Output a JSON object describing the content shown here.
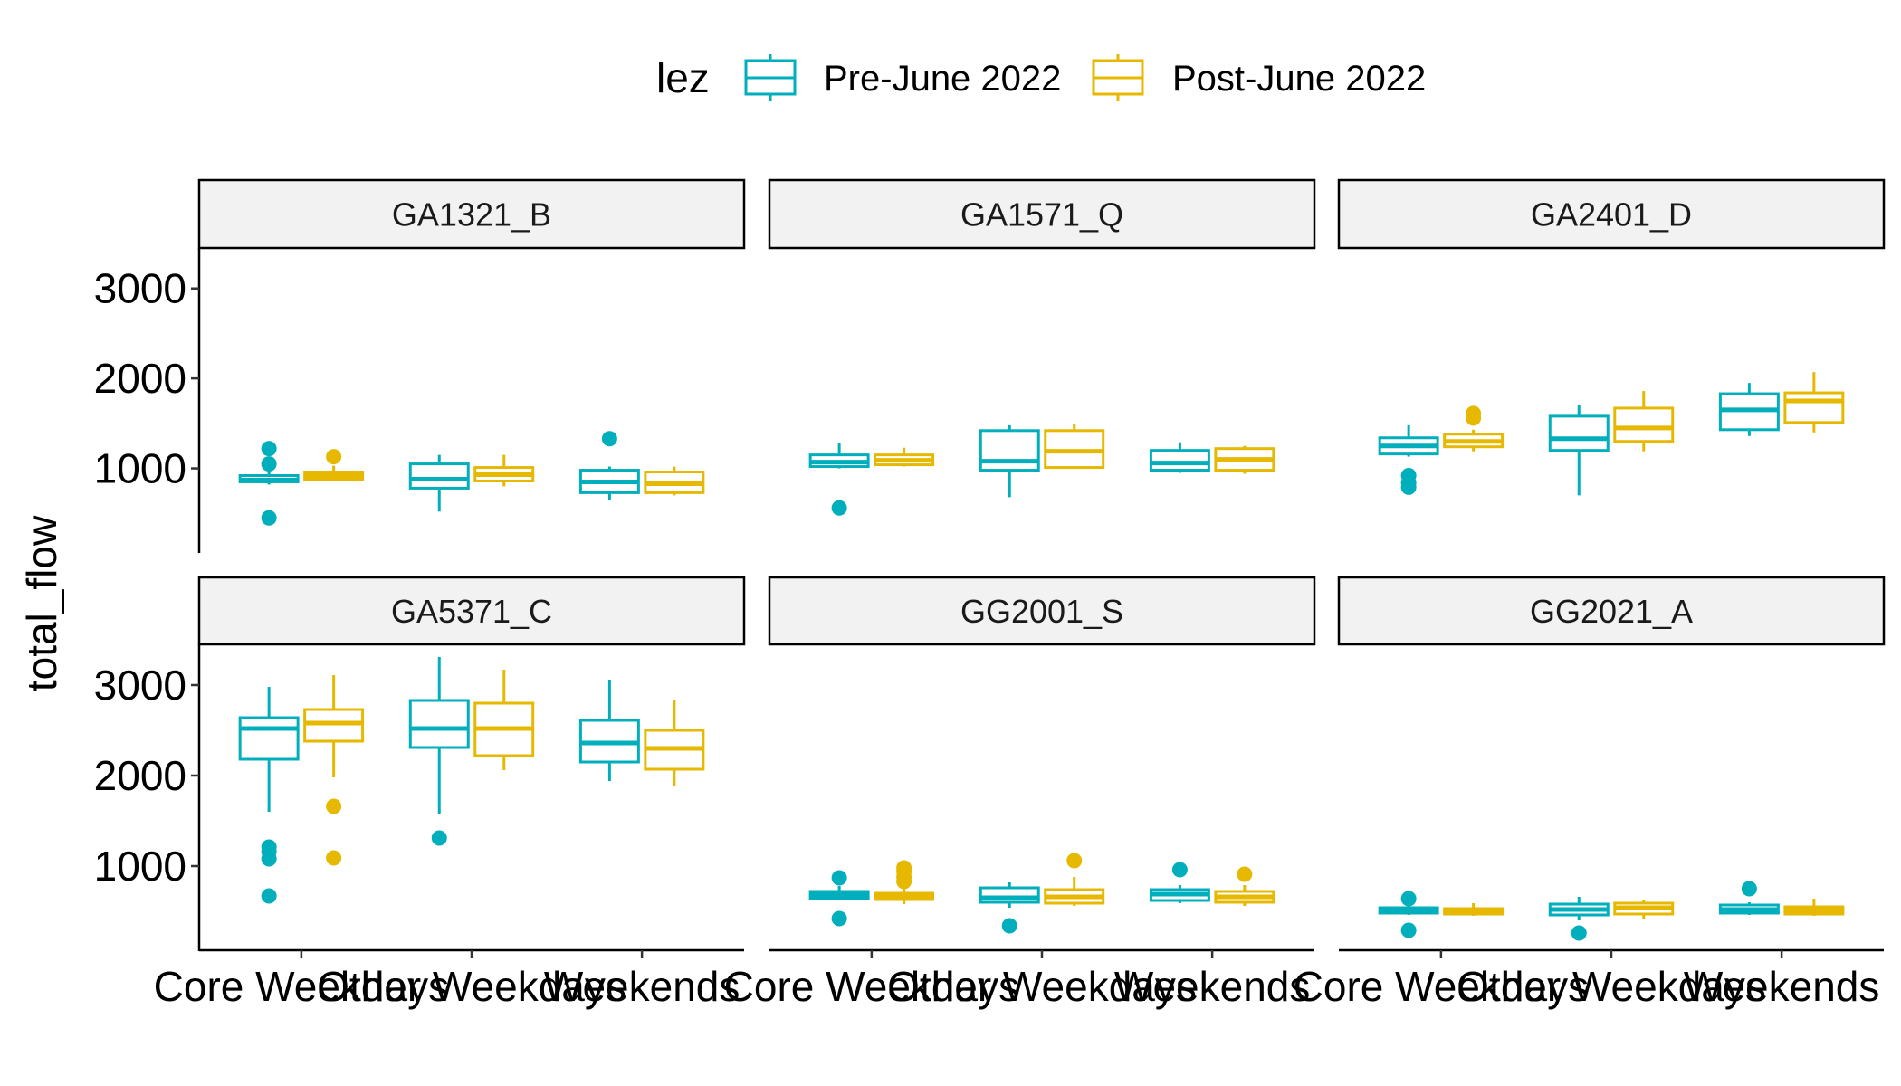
{
  "legend": {
    "title": "lez",
    "entries": [
      {
        "label": "Pre-June 2022",
        "color": "#00AFBB"
      },
      {
        "label": "Post-June 2022",
        "color": "#E7B800"
      }
    ]
  },
  "chart_data": {
    "type": "boxplot",
    "ylabel": "total_flow",
    "xlabel": "",
    "yticks": [
      1000,
      2000,
      3000
    ],
    "ylim": [
      70,
      3450
    ],
    "grid": false,
    "legend_position": "top",
    "categories": [
      "Core Weekdays",
      "Other Weekdays",
      "Weekends"
    ],
    "series": [
      "Pre-June 2022",
      "Post-June 2022"
    ],
    "panels": [
      {
        "name": "GA1321_B",
        "groups": [
          {
            "category": "Core Weekdays",
            "series": "Pre-June 2022",
            "min": 820,
            "q1": 850,
            "median": 870,
            "q3": 920,
            "max": 1000,
            "outliers": [
              1220,
              1050,
              450
            ]
          },
          {
            "category": "Core Weekdays",
            "series": "Post-June 2022",
            "min": 860,
            "q1": 880,
            "median": 920,
            "q3": 960,
            "max": 1030,
            "outliers": [
              1130
            ]
          },
          {
            "category": "Other Weekdays",
            "series": "Pre-June 2022",
            "min": 520,
            "q1": 780,
            "median": 880,
            "q3": 1050,
            "max": 1150,
            "outliers": []
          },
          {
            "category": "Other Weekdays",
            "series": "Post-June 2022",
            "min": 800,
            "q1": 860,
            "median": 930,
            "q3": 1010,
            "max": 1150,
            "outliers": []
          },
          {
            "category": "Weekends",
            "series": "Pre-June 2022",
            "min": 650,
            "q1": 730,
            "median": 850,
            "q3": 980,
            "max": 1020,
            "outliers": [
              1330
            ]
          },
          {
            "category": "Weekends",
            "series": "Post-June 2022",
            "min": 700,
            "q1": 730,
            "median": 830,
            "q3": 960,
            "max": 1020,
            "outliers": []
          }
        ]
      },
      {
        "name": "GA1571_Q",
        "groups": [
          {
            "category": "Core Weekdays",
            "series": "Pre-June 2022",
            "min": 1000,
            "q1": 1020,
            "median": 1070,
            "q3": 1150,
            "max": 1280,
            "outliers": [
              560
            ]
          },
          {
            "category": "Core Weekdays",
            "series": "Post-June 2022",
            "min": 1020,
            "q1": 1040,
            "median": 1090,
            "q3": 1150,
            "max": 1230,
            "outliers": []
          },
          {
            "category": "Other Weekdays",
            "series": "Pre-June 2022",
            "min": 680,
            "q1": 980,
            "median": 1080,
            "q3": 1420,
            "max": 1480,
            "outliers": []
          },
          {
            "category": "Other Weekdays",
            "series": "Post-June 2022",
            "min": 1000,
            "q1": 1010,
            "median": 1190,
            "q3": 1420,
            "max": 1490,
            "outliers": []
          },
          {
            "category": "Weekends",
            "series": "Pre-June 2022",
            "min": 950,
            "q1": 980,
            "median": 1060,
            "q3": 1200,
            "max": 1290,
            "outliers": []
          },
          {
            "category": "Weekends",
            "series": "Post-June 2022",
            "min": 940,
            "q1": 980,
            "median": 1100,
            "q3": 1220,
            "max": 1250,
            "outliers": []
          }
        ]
      },
      {
        "name": "GA2401_D",
        "groups": [
          {
            "category": "Core Weekdays",
            "series": "Pre-June 2022",
            "min": 1130,
            "q1": 1160,
            "median": 1250,
            "q3": 1340,
            "max": 1480,
            "outliers": [
              920,
              840,
              790
            ]
          },
          {
            "category": "Core Weekdays",
            "series": "Post-June 2022",
            "min": 1190,
            "q1": 1240,
            "median": 1300,
            "q3": 1380,
            "max": 1430,
            "outliers": [
              1610,
              1560
            ]
          },
          {
            "category": "Other Weekdays",
            "series": "Pre-June 2022",
            "min": 700,
            "q1": 1200,
            "median": 1330,
            "q3": 1580,
            "max": 1700,
            "outliers": []
          },
          {
            "category": "Other Weekdays",
            "series": "Post-June 2022",
            "min": 1190,
            "q1": 1300,
            "median": 1450,
            "q3": 1670,
            "max": 1860,
            "outliers": []
          },
          {
            "category": "Weekends",
            "series": "Pre-June 2022",
            "min": 1360,
            "q1": 1430,
            "median": 1650,
            "q3": 1830,
            "max": 1950,
            "outliers": []
          },
          {
            "category": "Weekends",
            "series": "Post-June 2022",
            "min": 1400,
            "q1": 1510,
            "median": 1750,
            "q3": 1840,
            "max": 2070,
            "outliers": []
          }
        ]
      },
      {
        "name": "GA5371_C",
        "groups": [
          {
            "category": "Core Weekdays",
            "series": "Pre-June 2022",
            "min": 1600,
            "q1": 2180,
            "median": 2520,
            "q3": 2640,
            "max": 2980,
            "outliers": [
              1210,
              1160,
              1080,
              670
            ]
          },
          {
            "category": "Core Weekdays",
            "series": "Post-June 2022",
            "min": 1980,
            "q1": 2380,
            "median": 2580,
            "q3": 2730,
            "max": 3110,
            "outliers": [
              1660,
              1090
            ]
          },
          {
            "category": "Other Weekdays",
            "series": "Pre-June 2022",
            "min": 1570,
            "q1": 2310,
            "median": 2520,
            "q3": 2830,
            "max": 3310,
            "outliers": [
              1310
            ]
          },
          {
            "category": "Other Weekdays",
            "series": "Post-June 2022",
            "min": 2060,
            "q1": 2220,
            "median": 2520,
            "q3": 2800,
            "max": 3170,
            "outliers": []
          },
          {
            "category": "Weekends",
            "series": "Pre-June 2022",
            "min": 1940,
            "q1": 2150,
            "median": 2360,
            "q3": 2610,
            "max": 3060,
            "outliers": []
          },
          {
            "category": "Weekends",
            "series": "Post-June 2022",
            "min": 1880,
            "q1": 2070,
            "median": 2300,
            "q3": 2500,
            "max": 2840,
            "outliers": []
          }
        ]
      },
      {
        "name": "GG2001_S",
        "groups": [
          {
            "category": "Core Weekdays",
            "series": "Pre-June 2022",
            "min": 630,
            "q1": 640,
            "median": 680,
            "q3": 720,
            "max": 780,
            "outliers": [
              870,
              420
            ]
          },
          {
            "category": "Core Weekdays",
            "series": "Post-June 2022",
            "min": 580,
            "q1": 630,
            "median": 660,
            "q3": 700,
            "max": 760,
            "outliers": [
              980,
              940,
              880,
              830
            ]
          },
          {
            "category": "Other Weekdays",
            "series": "Pre-June 2022",
            "min": 540,
            "q1": 600,
            "median": 650,
            "q3": 760,
            "max": 820,
            "outliers": [
              340
            ]
          },
          {
            "category": "Other Weekdays",
            "series": "Post-June 2022",
            "min": 560,
            "q1": 590,
            "median": 660,
            "q3": 740,
            "max": 880,
            "outliers": [
              1060
            ]
          },
          {
            "category": "Weekends",
            "series": "Pre-June 2022",
            "min": 590,
            "q1": 620,
            "median": 690,
            "q3": 740,
            "max": 790,
            "outliers": [
              960
            ]
          },
          {
            "category": "Weekends",
            "series": "Post-June 2022",
            "min": 560,
            "q1": 600,
            "median": 660,
            "q3": 720,
            "max": 790,
            "outliers": [
              910
            ]
          }
        ]
      },
      {
        "name": "GG2021_A",
        "groups": [
          {
            "category": "Core Weekdays",
            "series": "Pre-June 2022",
            "min": 460,
            "q1": 480,
            "median": 510,
            "q3": 540,
            "max": 560,
            "outliers": [
              640,
              290
            ]
          },
          {
            "category": "Core Weekdays",
            "series": "Post-June 2022",
            "min": 450,
            "q1": 470,
            "median": 500,
            "q3": 530,
            "max": 590,
            "outliers": []
          },
          {
            "category": "Other Weekdays",
            "series": "Pre-June 2022",
            "min": 400,
            "q1": 460,
            "median": 520,
            "q3": 580,
            "max": 660,
            "outliers": [
              260
            ]
          },
          {
            "category": "Other Weekdays",
            "series": "Post-June 2022",
            "min": 410,
            "q1": 470,
            "median": 540,
            "q3": 590,
            "max": 630,
            "outliers": []
          },
          {
            "category": "Weekends",
            "series": "Pre-June 2022",
            "min": 460,
            "q1": 480,
            "median": 520,
            "q3": 570,
            "max": 600,
            "outliers": [
              750
            ]
          },
          {
            "category": "Weekends",
            "series": "Post-June 2022",
            "min": 450,
            "q1": 470,
            "median": 510,
            "q3": 550,
            "max": 640,
            "outliers": []
          }
        ]
      }
    ]
  }
}
